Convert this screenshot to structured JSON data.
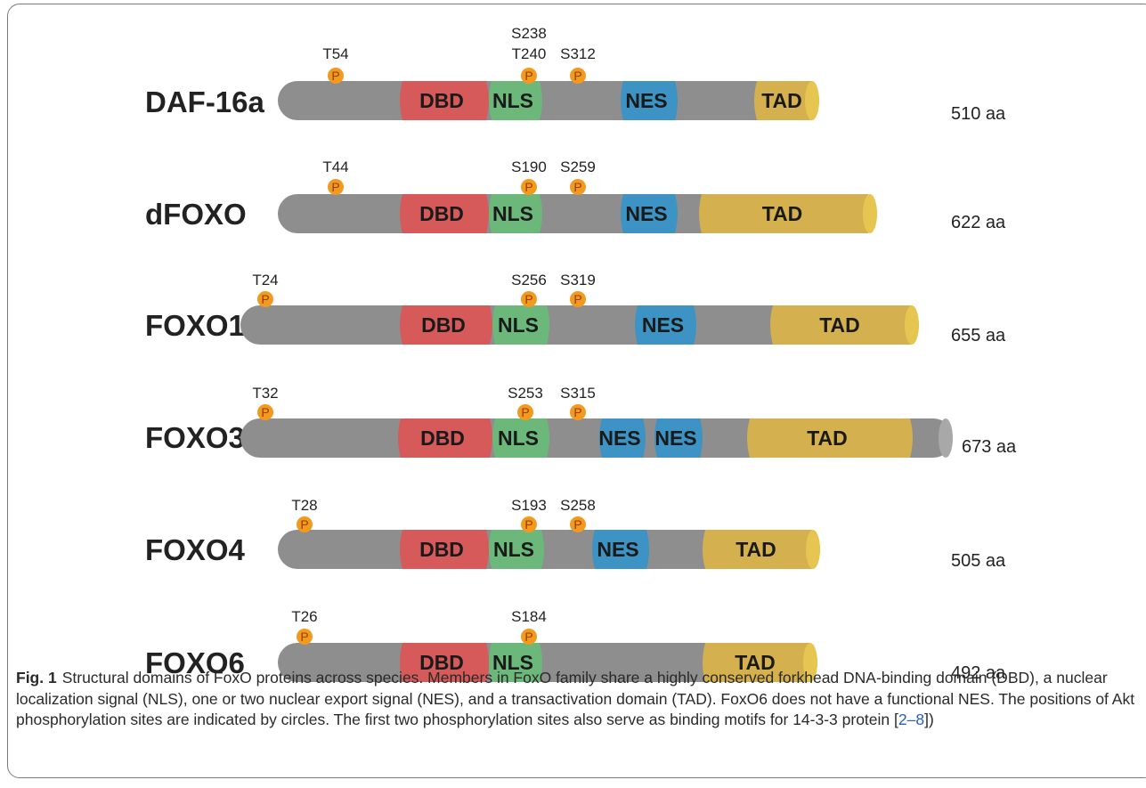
{
  "proteins": [
    {
      "name": "DAF-16a",
      "length_label": "510 aa",
      "domains": [
        "DBD",
        "NLS",
        "NES",
        "TAD"
      ],
      "sites": [
        "T54",
        "S238\nT240",
        "S312"
      ]
    },
    {
      "name": "dFOXO",
      "length_label": "622 aa",
      "domains": [
        "DBD",
        "NLS",
        "NES",
        "TAD"
      ],
      "sites": [
        "T44",
        "S190",
        "S259"
      ]
    },
    {
      "name": "FOXO1",
      "length_label": "655 aa",
      "domains": [
        "DBD",
        "NLS",
        "NES",
        "TAD"
      ],
      "sites": [
        "T24",
        "S256",
        "S319"
      ]
    },
    {
      "name": "FOXO3",
      "length_label": "673 aa",
      "domains": [
        "DBD",
        "NLS",
        "NES",
        "NES",
        "TAD"
      ],
      "sites": [
        "T32",
        "S253",
        "S315"
      ]
    },
    {
      "name": "FOXO4",
      "length_label": "505 aa",
      "domains": [
        "DBD",
        "NLS",
        "NES",
        "TAD"
      ],
      "sites": [
        "T28",
        "S193",
        "S258"
      ]
    },
    {
      "name": "FOXO6",
      "length_label": "492 aa",
      "domains": [
        "DBD",
        "NLS",
        "TAD"
      ],
      "sites": [
        "T26",
        "S184"
      ]
    }
  ],
  "phospho_marker_label": "P",
  "domain_colors": {
    "backbone": "#8e8e8e",
    "DBD": "#d65a5a",
    "NLS": "#6cb87a",
    "NES": "#3d93c4",
    "TAD": "#d5b04e",
    "cap": "#e6c650",
    "phospho": "#f29a1f"
  },
  "caption": {
    "label": "Fig. 1",
    "text": "Structural domains of FoxO proteins across species. Members in FoxO family share a highly conserved forkhead DNA-binding domain (DBD), a nuclear localization signal (NLS), one or two nuclear export signal (NES), and a transactivation domain (TAD). FoxO6 does not have a functional NES. The positions of Akt phosphorylation sites are indicated by circles. The first two phosphorylation sites also serve as binding motifs for 14-3-3 protein [",
    "citation": "2–8",
    "text_end": "])"
  }
}
